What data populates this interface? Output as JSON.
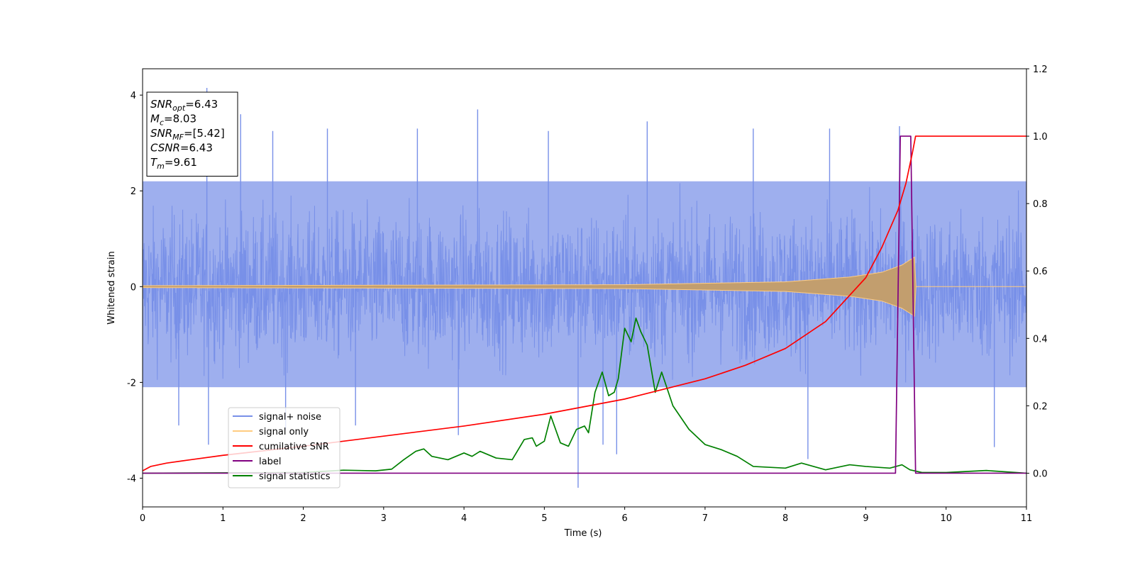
{
  "chart_data": {
    "type": "line",
    "xlabel": "Time (s)",
    "ylabel": "Whitened strain",
    "xlim": [
      0,
      11
    ],
    "ylim_left": [
      -4.6,
      4.55
    ],
    "ylim_right": [
      -0.1,
      1.2
    ],
    "x_ticks": [
      0,
      1,
      2,
      3,
      4,
      5,
      6,
      7,
      8,
      9,
      10,
      11
    ],
    "y_ticks_left": [
      -4,
      -2,
      0,
      2,
      4
    ],
    "y_ticks_right": [
      0.0,
      0.2,
      0.4,
      0.6,
      0.8,
      1.0,
      1.2
    ],
    "legend_placement": "lower-left",
    "annotation": {
      "lines": [
        {
          "main": "SNR",
          "sub": "opt",
          "value": "=6.43"
        },
        {
          "main": "M",
          "sub": "c",
          "value": "=8.03"
        },
        {
          "main": "SNR",
          "sub": "MF",
          "value": "=[5.42]"
        },
        {
          "main": "CSNR",
          "sub": "",
          "value": "=6.43"
        },
        {
          "main": "T",
          "sub": "m",
          "value": "=9.61"
        }
      ]
    },
    "series": [
      {
        "name": "signal+ noise",
        "axis": "left",
        "color": "#7890e8",
        "style": "noise-band",
        "typical_envelope": [
          -2.1,
          2.2
        ],
        "peak_spikes": [
          {
            "x": 0.8,
            "y": 4.15
          },
          {
            "x": 1.22,
            "y": 3.6
          },
          {
            "x": 1.62,
            "y": 3.25
          },
          {
            "x": 2.3,
            "y": 3.3
          },
          {
            "x": 3.42,
            "y": 3.3
          },
          {
            "x": 4.17,
            "y": 3.7
          },
          {
            "x": 5.05,
            "y": 3.25
          },
          {
            "x": 6.28,
            "y": 3.45
          },
          {
            "x": 7.6,
            "y": 3.3
          },
          {
            "x": 8.55,
            "y": 3.3
          },
          {
            "x": 9.42,
            "y": 3.35
          },
          {
            "x": 0.45,
            "y": -2.9
          },
          {
            "x": 0.82,
            "y": -3.3
          },
          {
            "x": 1.78,
            "y": -3.0
          },
          {
            "x": 2.65,
            "y": -2.9
          },
          {
            "x": 3.93,
            "y": -3.1
          },
          {
            "x": 5.42,
            "y": -4.2
          },
          {
            "x": 5.73,
            "y": -3.3
          },
          {
            "x": 5.9,
            "y": -3.5
          },
          {
            "x": 8.28,
            "y": -3.6
          },
          {
            "x": 10.6,
            "y": -3.35
          }
        ]
      },
      {
        "name": "signal only",
        "axis": "left",
        "color": "#ffcc80",
        "style": "chirp",
        "amplitude_points": [
          {
            "x": 0,
            "y": 0.02
          },
          {
            "x": 6,
            "y": 0.04
          },
          {
            "x": 8,
            "y": 0.1
          },
          {
            "x": 8.8,
            "y": 0.2
          },
          {
            "x": 9.2,
            "y": 0.3
          },
          {
            "x": 9.45,
            "y": 0.45
          },
          {
            "x": 9.61,
            "y": 0.62
          },
          {
            "x": 9.62,
            "y": 0
          },
          {
            "x": 11,
            "y": 0
          }
        ]
      },
      {
        "name": "cumilative SNR",
        "axis": "right",
        "color": "#ff0000",
        "points": [
          {
            "x": 0,
            "y": 0.007
          },
          {
            "x": 0.1,
            "y": 0.02
          },
          {
            "x": 0.3,
            "y": 0.03
          },
          {
            "x": 0.6,
            "y": 0.04
          },
          {
            "x": 1,
            "y": 0.053
          },
          {
            "x": 2,
            "y": 0.08
          },
          {
            "x": 3,
            "y": 0.11
          },
          {
            "x": 4,
            "y": 0.14
          },
          {
            "x": 5,
            "y": 0.175
          },
          {
            "x": 6,
            "y": 0.22
          },
          {
            "x": 7,
            "y": 0.28
          },
          {
            "x": 7.5,
            "y": 0.32
          },
          {
            "x": 8,
            "y": 0.37
          },
          {
            "x": 8.5,
            "y": 0.45
          },
          {
            "x": 9,
            "y": 0.58
          },
          {
            "x": 9.2,
            "y": 0.67
          },
          {
            "x": 9.4,
            "y": 0.78
          },
          {
            "x": 9.5,
            "y": 0.86
          },
          {
            "x": 9.58,
            "y": 0.95
          },
          {
            "x": 9.62,
            "y": 1.0
          },
          {
            "x": 11,
            "y": 1.0
          }
        ]
      },
      {
        "name": "label",
        "axis": "right",
        "color": "#800080",
        "points": [
          {
            "x": 0,
            "y": 0
          },
          {
            "x": 9.37,
            "y": 0
          },
          {
            "x": 9.43,
            "y": 1.0
          },
          {
            "x": 9.56,
            "y": 1.0
          },
          {
            "x": 9.62,
            "y": 0
          },
          {
            "x": 11,
            "y": 0
          }
        ]
      },
      {
        "name": "signal statistics",
        "axis": "right",
        "color": "#008000",
        "points": [
          {
            "x": 0,
            "y": 0
          },
          {
            "x": 1,
            "y": 0.001
          },
          {
            "x": 2,
            "y": 0.002
          },
          {
            "x": 2.5,
            "y": 0.009
          },
          {
            "x": 2.9,
            "y": 0.007
          },
          {
            "x": 3.1,
            "y": 0.012
          },
          {
            "x": 3.25,
            "y": 0.04
          },
          {
            "x": 3.4,
            "y": 0.065
          },
          {
            "x": 3.5,
            "y": 0.072
          },
          {
            "x": 3.6,
            "y": 0.05
          },
          {
            "x": 3.8,
            "y": 0.04
          },
          {
            "x": 4.0,
            "y": 0.06
          },
          {
            "x": 4.1,
            "y": 0.05
          },
          {
            "x": 4.2,
            "y": 0.065
          },
          {
            "x": 4.4,
            "y": 0.045
          },
          {
            "x": 4.6,
            "y": 0.04
          },
          {
            "x": 4.75,
            "y": 0.1
          },
          {
            "x": 4.85,
            "y": 0.105
          },
          {
            "x": 4.9,
            "y": 0.08
          },
          {
            "x": 5.0,
            "y": 0.095
          },
          {
            "x": 5.08,
            "y": 0.17
          },
          {
            "x": 5.2,
            "y": 0.09
          },
          {
            "x": 5.3,
            "y": 0.08
          },
          {
            "x": 5.4,
            "y": 0.13
          },
          {
            "x": 5.5,
            "y": 0.14
          },
          {
            "x": 5.55,
            "y": 0.12
          },
          {
            "x": 5.63,
            "y": 0.24
          },
          {
            "x": 5.72,
            "y": 0.3
          },
          {
            "x": 5.8,
            "y": 0.23
          },
          {
            "x": 5.87,
            "y": 0.24
          },
          {
            "x": 5.92,
            "y": 0.28
          },
          {
            "x": 6.0,
            "y": 0.43
          },
          {
            "x": 6.08,
            "y": 0.39
          },
          {
            "x": 6.14,
            "y": 0.46
          },
          {
            "x": 6.2,
            "y": 0.42
          },
          {
            "x": 6.28,
            "y": 0.38
          },
          {
            "x": 6.38,
            "y": 0.24
          },
          {
            "x": 6.46,
            "y": 0.3
          },
          {
            "x": 6.6,
            "y": 0.2
          },
          {
            "x": 6.8,
            "y": 0.13
          },
          {
            "x": 7.0,
            "y": 0.085
          },
          {
            "x": 7.2,
            "y": 0.07
          },
          {
            "x": 7.4,
            "y": 0.05
          },
          {
            "x": 7.6,
            "y": 0.02
          },
          {
            "x": 8.0,
            "y": 0.015
          },
          {
            "x": 8.2,
            "y": 0.03
          },
          {
            "x": 8.5,
            "y": 0.01
          },
          {
            "x": 8.8,
            "y": 0.025
          },
          {
            "x": 9.0,
            "y": 0.02
          },
          {
            "x": 9.3,
            "y": 0.015
          },
          {
            "x": 9.45,
            "y": 0.025
          },
          {
            "x": 9.55,
            "y": 0.01
          },
          {
            "x": 9.7,
            "y": 0.002
          },
          {
            "x": 10,
            "y": 0.002
          },
          {
            "x": 10.5,
            "y": 0.008
          },
          {
            "x": 11,
            "y": 0.0
          }
        ]
      }
    ]
  }
}
